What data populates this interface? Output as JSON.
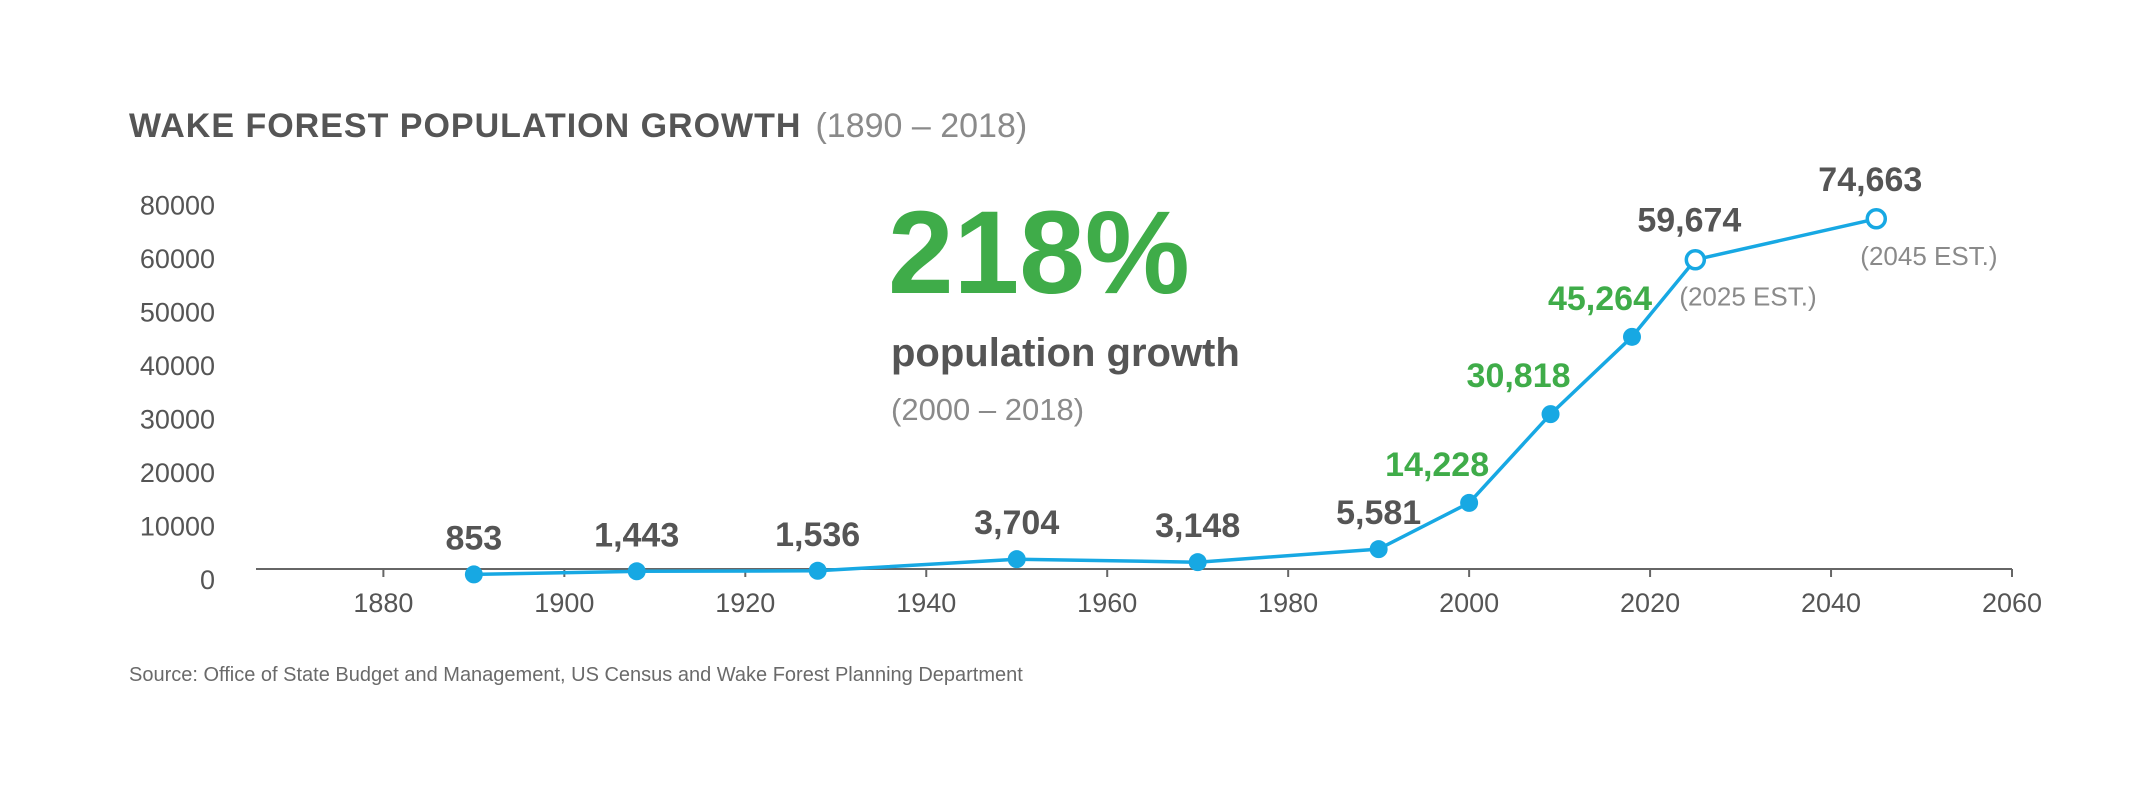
{
  "colors": {
    "title": "#555555",
    "subtitle": "#8a8a8a",
    "axis": "#666666",
    "tick_text": "#555555",
    "line": "#17a8e3",
    "highlight": "#3fac49",
    "label_dark": "#555555",
    "source": "#6a6a6a"
  },
  "chart_data": {
    "type": "line",
    "title": "WAKE FOREST POPULATION GROWTH",
    "subtitle": "(1890 – 2018)",
    "xlabel": "",
    "ylabel": "",
    "xlim": [
      1872,
      2060
    ],
    "ylim": [
      0,
      80000
    ],
    "x_ticks": [
      1880,
      1900,
      1920,
      1940,
      1960,
      1980,
      2000,
      2020,
      2040,
      2060
    ],
    "y_ticks": [
      0,
      10000,
      20000,
      30000,
      40000,
      50000,
      60000,
      80000
    ],
    "y_tick_labels": [
      "0",
      "10000",
      "20000",
      "30000",
      "40000",
      "50000",
      "60000",
      "80000"
    ],
    "grid": false,
    "series": [
      {
        "name": "Population",
        "points": [
          {
            "x": 1890,
            "y": 853,
            "label": "853",
            "highlight": false,
            "estimate": false,
            "note": ""
          },
          {
            "x": 1908,
            "y": 1443,
            "label": "1,443",
            "highlight": false,
            "estimate": false,
            "note": ""
          },
          {
            "x": 1928,
            "y": 1536,
            "label": "1,536",
            "highlight": false,
            "estimate": false,
            "note": ""
          },
          {
            "x": 1950,
            "y": 3704,
            "label": "3,704",
            "highlight": false,
            "estimate": false,
            "note": ""
          },
          {
            "x": 1970,
            "y": 3148,
            "label": "3,148",
            "highlight": false,
            "estimate": false,
            "note": ""
          },
          {
            "x": 1990,
            "y": 5581,
            "label": "5,581",
            "highlight": false,
            "estimate": false,
            "note": ""
          },
          {
            "x": 2000,
            "y": 14228,
            "label": "14,228",
            "highlight": true,
            "estimate": false,
            "note": ""
          },
          {
            "x": 2009,
            "y": 30818,
            "label": "30,818",
            "highlight": true,
            "estimate": false,
            "note": ""
          },
          {
            "x": 2018,
            "y": 45264,
            "label": "45,264",
            "highlight": true,
            "estimate": false,
            "note": ""
          },
          {
            "x": 2025,
            "y": 59674,
            "label": "59,674",
            "highlight": false,
            "estimate": true,
            "note": "(2025 EST.)"
          },
          {
            "x": 2045,
            "y": 74663,
            "label": "74,663",
            "highlight": false,
            "estimate": true,
            "note": "(2045 EST.)"
          }
        ]
      }
    ],
    "callout": {
      "big": "218%",
      "text": "population growth",
      "period": "(2000 – 2018)"
    },
    "source": "Source: Office of State Budget and Management, US Census and Wake Forest Planning Department"
  }
}
